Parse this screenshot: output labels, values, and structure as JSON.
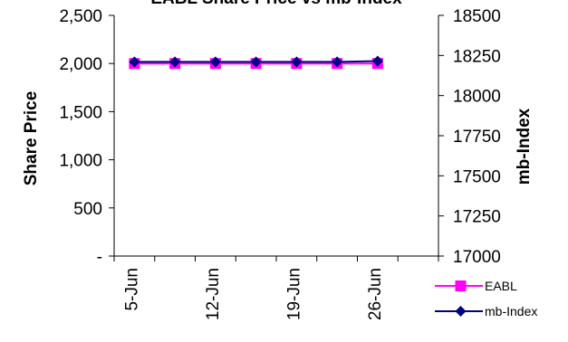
{
  "chart_data": {
    "type": "line",
    "title": "EABL Share Price vs mb-Index",
    "ylabel": "Share Price",
    "y2label": "mb-Index",
    "ylim": [
      0,
      2500
    ],
    "y2lim": [
      17000,
      18500
    ],
    "y_ticks": [
      {
        "value": 0,
        "label": "-"
      },
      {
        "value": 500,
        "label": "500"
      },
      {
        "value": 1000,
        "label": "1,000"
      },
      {
        "value": 1500,
        "label": "1,500"
      },
      {
        "value": 2000,
        "label": "2,000"
      },
      {
        "value": 2500,
        "label": "2,500"
      }
    ],
    "y2_ticks": [
      {
        "value": 17000,
        "label": "17000"
      },
      {
        "value": 17250,
        "label": "17250"
      },
      {
        "value": 17500,
        "label": "17500"
      },
      {
        "value": 17750,
        "label": "17750"
      },
      {
        "value": 18000,
        "label": "18000"
      },
      {
        "value": 18250,
        "label": "18250"
      },
      {
        "value": 18500,
        "label": "18500"
      }
    ],
    "x_tick_labels": [
      "5-Jun",
      "12-Jun",
      "19-Jun",
      "26-Jun"
    ],
    "series": [
      {
        "name": "EABL",
        "axis": "left",
        "color": "#ff00ff",
        "marker": "square",
        "values": [
          2000,
          2000,
          2000,
          2000,
          2000,
          2000,
          2000
        ]
      },
      {
        "name": "mb-Index",
        "axis": "right",
        "color": "#000080",
        "marker": "diamond",
        "values": [
          18210,
          18210,
          18210,
          18210,
          18210,
          18210,
          18215
        ]
      }
    ],
    "legend_position": "bottom-right",
    "grid": false
  }
}
